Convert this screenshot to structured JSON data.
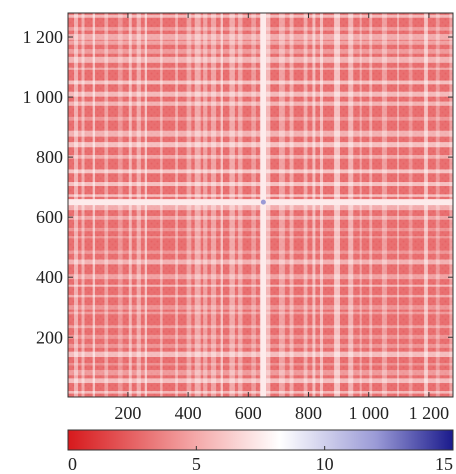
{
  "chart_data": {
    "type": "heatmap",
    "title": "",
    "xlabel": "",
    "ylabel": "",
    "x_range": [
      1,
      1280
    ],
    "y_range": [
      1,
      1280
    ],
    "x_ticks": [
      200,
      400,
      600,
      800,
      1000,
      1200
    ],
    "x_tick_labels": [
      "200",
      "400",
      "600",
      "800",
      "1 000",
      "1 200"
    ],
    "y_ticks": [
      200,
      400,
      600,
      800,
      1000,
      1200
    ],
    "y_tick_labels": [
      "200",
      "400",
      "600",
      "800",
      "1 000",
      "1 200"
    ],
    "colorbar": {
      "range": [
        0,
        15
      ],
      "ticks": [
        0,
        5,
        10,
        15
      ],
      "tick_labels": [
        "0",
        "5",
        "10",
        "15"
      ],
      "colors": [
        "#d7191c",
        "#f4a8a8",
        "#ffffff",
        "#9a9ad6",
        "#1a1a8c"
      ],
      "color_stops": [
        0,
        0.33,
        0.55,
        0.8,
        1
      ]
    },
    "typical_value": 3,
    "bands": {
      "vertical_range": [
        640,
        660
      ],
      "horizontal_range": [
        640,
        660
      ],
      "value": 7.5
    },
    "hot_spot": {
      "x": 650,
      "y": 650,
      "value": 12
    },
    "grid": false,
    "legend": "colorbar-bottom"
  }
}
